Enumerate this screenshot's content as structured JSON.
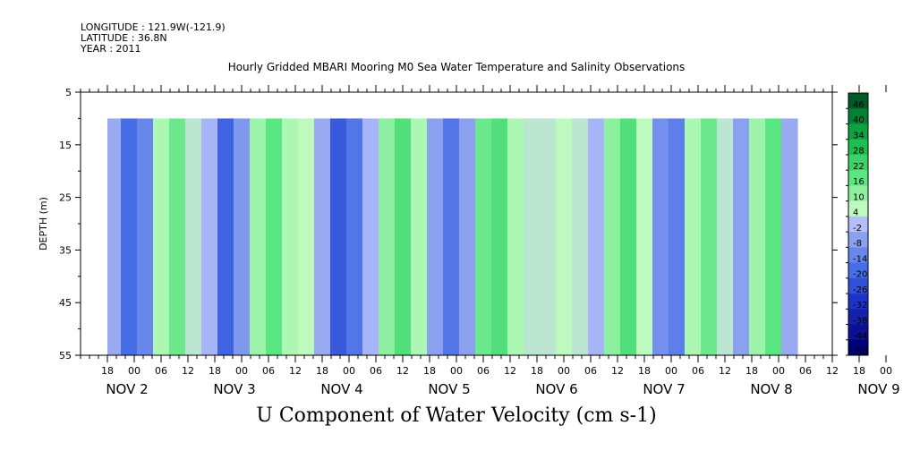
{
  "header": {
    "longitude": "LONGITUDE : 121.9W(-121.9)",
    "latitude": "LATITUDE : 36.8N",
    "year": "YEAR : 2011"
  },
  "chart_data": {
    "type": "heatmap",
    "title": "Hourly Gridded MBARI Mooring M0 Sea Water Temperature and Salinity Observations",
    "xlabel": "U Component of Water Velocity (cm s-1)",
    "ylabel": "DEPTH (m)",
    "ylim": [
      55,
      5
    ],
    "y_ticks": [
      5,
      15,
      25,
      35,
      45,
      55
    ],
    "x_hour_ticks": [
      "18",
      "00",
      "06",
      "12",
      "18",
      "00",
      "06",
      "12",
      "18",
      "00",
      "06",
      "12",
      "18",
      "00",
      "06",
      "12",
      "18",
      "00",
      "06",
      "12",
      "18",
      "00",
      "06",
      "12",
      "18",
      "00",
      "06",
      "12",
      "18",
      "00",
      "06",
      "12"
    ],
    "x_day_labels": [
      "NOV 2",
      "NOV 3",
      "NOV 4",
      "NOV 5",
      "NOV 6",
      "NOV 7",
      "NOV 8",
      "NOV 9"
    ],
    "colorbar": {
      "levels": [
        46,
        40,
        34,
        28,
        22,
        16,
        10,
        4,
        -2,
        -8,
        -14,
        -20,
        -26,
        -32,
        -38,
        -44,
        -50
      ]
    },
    "bands": [
      {
        "day": 1.8,
        "value": -6
      },
      {
        "day": 1.95,
        "value": -20
      },
      {
        "day": 2.1,
        "value": -14
      },
      {
        "day": 2.25,
        "value": 6
      },
      {
        "day": 2.4,
        "value": 14
      },
      {
        "day": 2.55,
        "value": 2
      },
      {
        "day": 2.7,
        "value": -4
      },
      {
        "day": 2.85,
        "value": -22
      },
      {
        "day": 3.0,
        "value": -10
      },
      {
        "day": 3.15,
        "value": 8
      },
      {
        "day": 3.3,
        "value": 16
      },
      {
        "day": 3.45,
        "value": 6
      },
      {
        "day": 3.6,
        "value": 4
      },
      {
        "day": 3.75,
        "value": -6
      },
      {
        "day": 3.9,
        "value": -24
      },
      {
        "day": 4.05,
        "value": -18
      },
      {
        "day": 4.2,
        "value": -4
      },
      {
        "day": 4.35,
        "value": 10
      },
      {
        "day": 4.5,
        "value": 18
      },
      {
        "day": 4.65,
        "value": 6
      },
      {
        "day": 4.8,
        "value": -8
      },
      {
        "day": 4.95,
        "value": -18
      },
      {
        "day": 5.1,
        "value": -8
      },
      {
        "day": 5.25,
        "value": 14
      },
      {
        "day": 5.4,
        "value": 18
      },
      {
        "day": 5.55,
        "value": 6
      },
      {
        "day": 5.7,
        "value": 2
      },
      {
        "day": 5.85,
        "value": 2
      },
      {
        "day": 6.0,
        "value": 4
      },
      {
        "day": 6.15,
        "value": 2
      },
      {
        "day": 6.3,
        "value": -4
      },
      {
        "day": 6.45,
        "value": 10
      },
      {
        "day": 6.6,
        "value": 18
      },
      {
        "day": 6.75,
        "value": 4
      },
      {
        "day": 6.9,
        "value": -12
      },
      {
        "day": 7.05,
        "value": -16
      },
      {
        "day": 7.2,
        "value": 6
      },
      {
        "day": 7.35,
        "value": 14
      },
      {
        "day": 7.5,
        "value": 2
      },
      {
        "day": 7.65,
        "value": -8
      },
      {
        "day": 7.8,
        "value": 8
      },
      {
        "day": 7.95,
        "value": 16
      },
      {
        "day": 8.1,
        "value": -6
      }
    ]
  }
}
